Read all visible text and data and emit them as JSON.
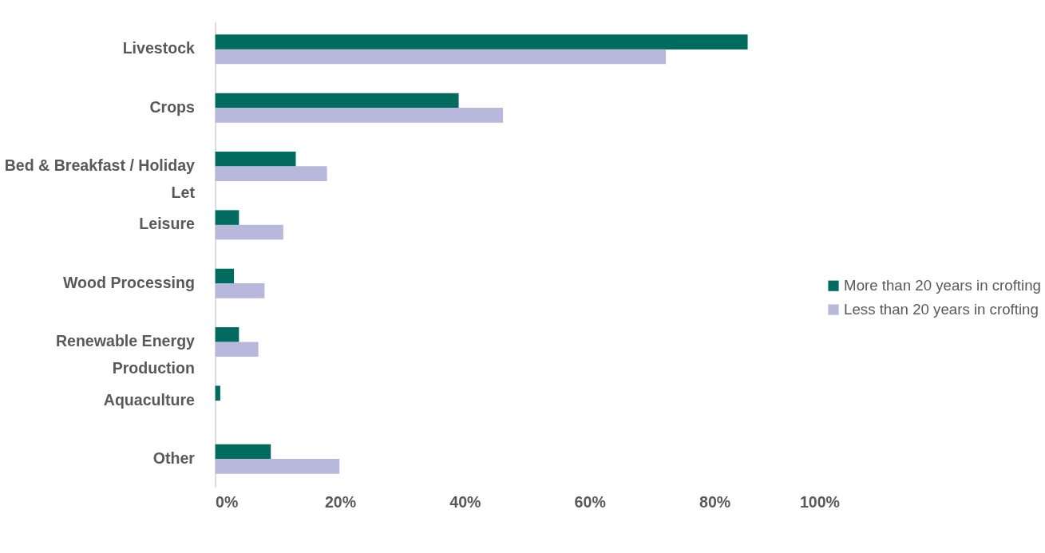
{
  "chart_data": {
    "type": "bar",
    "orientation": "horizontal",
    "categories": [
      "Livestock",
      "Crops",
      "Bed & Breakfast / Holiday Let",
      "Leisure",
      "Wood Processing",
      "Renewable Energy Production",
      "Aquaculture",
      "Other"
    ],
    "series": [
      {
        "name": "More than 20 years in crofting",
        "color": "#006b5e",
        "values": [
          85.3,
          39.0,
          12.9,
          3.8,
          3.0,
          3.8,
          0.8,
          8.9
        ]
      },
      {
        "name": "Less than 20 years in crofting",
        "color": "#b8b8dc",
        "values": [
          72.2,
          46.1,
          17.9,
          10.9,
          7.9,
          6.9,
          0,
          19.9
        ]
      }
    ],
    "xlim": [
      0,
      100
    ],
    "xticks": [
      {
        "value": 0,
        "label": "0%"
      },
      {
        "value": 20,
        "label": "20%"
      },
      {
        "value": 40,
        "label": "40%"
      },
      {
        "value": 60,
        "label": "60%"
      },
      {
        "value": 80,
        "label": "80%"
      },
      {
        "value": 100,
        "label": "100%"
      }
    ],
    "grid": false,
    "legend": "right"
  }
}
